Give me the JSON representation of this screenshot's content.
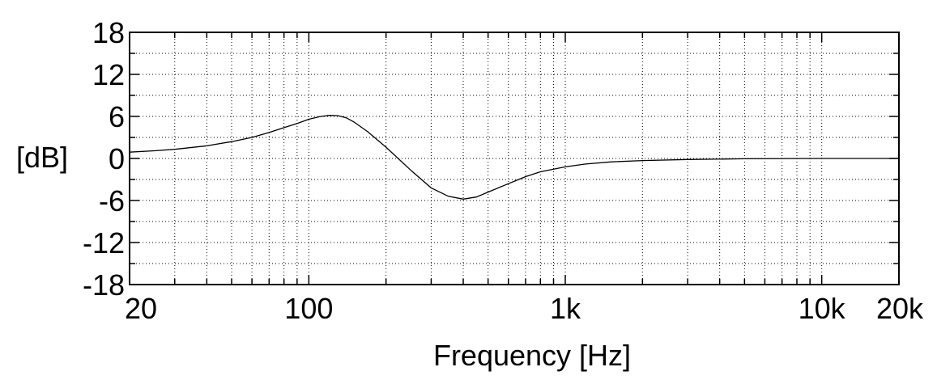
{
  "chart_data": {
    "type": "line",
    "title": "",
    "xlabel": "Frequency [Hz]",
    "ylabel": "[dB]",
    "x_scale": "log",
    "xlim": [
      20,
      20000
    ],
    "ylim": [
      -18,
      18
    ],
    "grid": true,
    "x_ticks": [
      {
        "value": 20,
        "label": "20"
      },
      {
        "value": 100,
        "label": "100"
      },
      {
        "value": 1000,
        "label": "1k"
      },
      {
        "value": 10000,
        "label": "10k"
      },
      {
        "value": 20000,
        "label": "20k"
      }
    ],
    "y_ticks": [
      {
        "value": 18,
        "label": "18"
      },
      {
        "value": 12,
        "label": "12"
      },
      {
        "value": 6,
        "label": "6"
      },
      {
        "value": 0,
        "label": "0"
      },
      {
        "value": -6,
        "label": "-6"
      },
      {
        "value": -12,
        "label": "-12"
      },
      {
        "value": -18,
        "label": "-18"
      }
    ],
    "series": [
      {
        "color": "#000000",
        "points": [
          [
            20,
            0.9
          ],
          [
            25,
            1.1
          ],
          [
            30,
            1.3
          ],
          [
            40,
            1.8
          ],
          [
            50,
            2.4
          ],
          [
            60,
            3.0
          ],
          [
            70,
            3.7
          ],
          [
            80,
            4.4
          ],
          [
            90,
            5.0
          ],
          [
            100,
            5.6
          ],
          [
            110,
            5.95
          ],
          [
            120,
            6.15
          ],
          [
            130,
            6.1
          ],
          [
            140,
            5.8
          ],
          [
            150,
            5.2
          ],
          [
            170,
            3.8
          ],
          [
            200,
            1.6
          ],
          [
            250,
            -1.7
          ],
          [
            300,
            -4.2
          ],
          [
            350,
            -5.4
          ],
          [
            400,
            -5.8
          ],
          [
            450,
            -5.5
          ],
          [
            500,
            -4.8
          ],
          [
            600,
            -3.6
          ],
          [
            700,
            -2.6
          ],
          [
            800,
            -1.9
          ],
          [
            1000,
            -1.2
          ],
          [
            1200,
            -0.8
          ],
          [
            1500,
            -0.5
          ],
          [
            2000,
            -0.3
          ],
          [
            3000,
            -0.15
          ],
          [
            5000,
            -0.05
          ],
          [
            10000,
            0.0
          ],
          [
            20000,
            0.0
          ]
        ]
      }
    ]
  }
}
